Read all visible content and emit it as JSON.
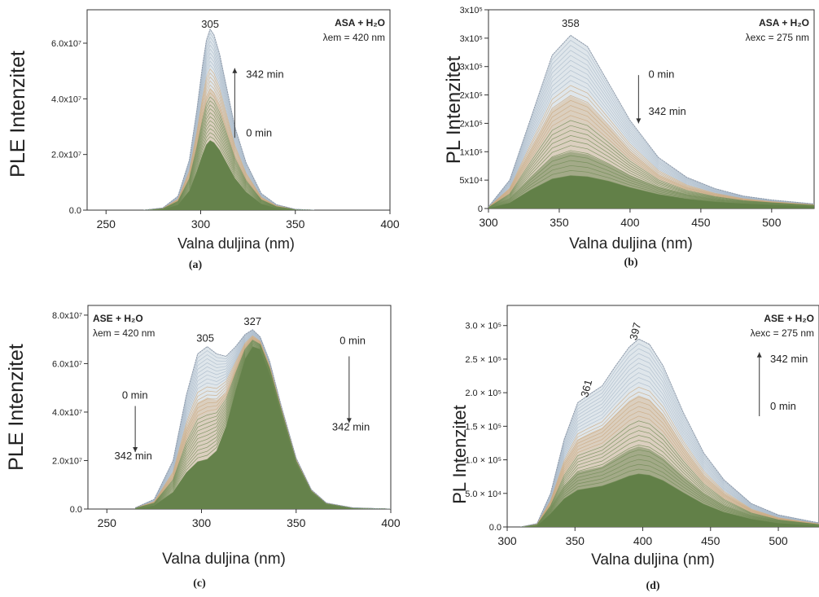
{
  "chart_data": [
    {
      "panel_label": "(a)",
      "type": "line",
      "ylabel": "PLE Intenzitet",
      "xlabel": "Valna duljina (nm)",
      "annotation_line1": "ASA + H₂O",
      "annotation_line2": "λem = 420 nm",
      "xlim": [
        240,
        400
      ],
      "ylim": [
        0,
        72000000.0
      ],
      "xticks": [
        250,
        300,
        350,
        400
      ],
      "ytick_values": [
        0,
        20000000.0,
        40000000.0,
        60000000.0
      ],
      "ytick_labels": [
        "0.0",
        "2.0x10⁷",
        "4.0x10⁷",
        "6.0x10⁷"
      ],
      "peak_labels": [
        {
          "text": "305",
          "x": 305,
          "y": 65500000.0
        }
      ],
      "time_labels": [
        {
          "text": "342 min",
          "x": 324,
          "y": 47500000.0
        },
        {
          "text": "0 min",
          "x": 324,
          "y": 26500000.0
        }
      ],
      "arrow": {
        "x": 318,
        "y_from": 26000000.0,
        "y_to": 51000000.0
      },
      "series": [
        {
          "values_x": [
            270,
            280,
            288,
            294,
            298,
            301,
            303,
            305,
            307,
            310,
            314,
            318,
            324,
            332,
            340,
            350,
            360
          ],
          "values_y": [
            0,
            800000.0,
            5000000.0,
            18000000.0,
            36000000.0,
            52000000.0,
            61000000.0,
            65000000.0,
            63000000.0,
            56000000.0,
            43000000.0,
            30000000.0,
            17000000.0,
            6000000.0,
            2000000.0,
            300000.0,
            0
          ]
        },
        {
          "values_x": [
            270,
            280,
            288,
            294,
            298,
            301,
            303,
            305,
            307,
            310,
            314,
            318,
            324,
            332,
            340,
            350,
            360
          ],
          "values_y": [
            0,
            500000.0,
            3500000.0,
            12000000.0,
            24000000.0,
            35000000.0,
            41000000.0,
            44000000.0,
            42500000.0,
            38000000.0,
            29000000.0,
            20000000.0,
            11500000.0,
            4000000.0,
            1400000.0,
            200000.0,
            0
          ]
        },
        {
          "values_x": [
            270,
            280,
            288,
            294,
            298,
            301,
            303,
            305,
            307,
            310,
            314,
            318,
            324,
            332,
            340,
            350,
            360
          ],
          "values_y": [
            0,
            300000.0,
            2000000.0,
            7000000.0,
            14000000.0,
            20000000.0,
            23500000.0,
            25000000.0,
            24200000.0,
            21500000.0,
            16500000.0,
            11500000.0,
            6500000.0,
            2300000.0,
            800000.0,
            100000.0,
            0
          ]
        }
      ]
    },
    {
      "panel_label": "(b)",
      "type": "line",
      "ylabel": "PL Intenzitet",
      "xlabel": "Valna duljina (nm)",
      "annotation_line1": "ASA + H₂O",
      "annotation_line2": "λexc = 275 nm",
      "xlim": [
        300,
        530
      ],
      "ylim": [
        0,
        350000.0
      ],
      "xticks": [
        300,
        350,
        400,
        450,
        500
      ],
      "ytick_values": [
        0,
        50000.0,
        100000.0,
        150000.0,
        200000.0,
        250000.0,
        300000.0,
        350000.0
      ],
      "ytick_labels": [
        "0",
        "5x10⁴",
        "1x10⁵",
        "2x10⁵",
        "2x10⁵",
        "3x10⁵",
        "3x10⁵",
        "3x10⁵"
      ],
      "peak_labels": [
        {
          "text": "358",
          "x": 358,
          "y": 320000.0
        }
      ],
      "time_labels": [
        {
          "text": "0 min",
          "x": 413,
          "y": 230000.0
        },
        {
          "text": "342 min",
          "x": 413,
          "y": 165000.0
        }
      ],
      "arrow": {
        "x": 406,
        "y_from": 235000.0,
        "y_to": 150000.0
      },
      "series": [
        {
          "values_x": [
            300,
            315,
            330,
            345,
            358,
            370,
            385,
            400,
            420,
            440,
            460,
            480,
            500,
            530
          ],
          "values_y": [
            3000.0,
            50000.0,
            160000.0,
            270000.0,
            305000.0,
            285000.0,
            220000.0,
            155000.0,
            90000.0,
            55000.0,
            35000.0,
            22000.0,
            15000.0,
            8000.0
          ]
        },
        {
          "values_x": [
            300,
            315,
            330,
            345,
            358,
            370,
            385,
            400,
            420,
            440,
            460,
            480,
            500,
            530
          ],
          "values_y": [
            2000.0,
            35000.0,
            105000.0,
            175000.0,
            198000.0,
            185000.0,
            145000.0,
            102000.0,
            60000.0,
            37000.0,
            24000.0,
            16000.0,
            11000.0,
            6000.0
          ]
        },
        {
          "values_x": [
            300,
            315,
            330,
            345,
            358,
            370,
            385,
            400,
            420,
            440,
            460,
            480,
            500,
            530
          ],
          "values_y": [
            1000.0,
            18000.0,
            55000.0,
            90000.0,
            100000.0,
            95000.0,
            78000.0,
            58000.0,
            38000.0,
            25000.0,
            17000.0,
            12000.0,
            9000.0,
            5000.0
          ]
        },
        {
          "values_x": [
            300,
            315,
            330,
            345,
            358,
            370,
            385,
            400,
            420,
            440,
            460,
            480,
            500,
            530
          ],
          "values_y": [
            1000.0,
            10000.0,
            33000.0,
            52000.0,
            58000.0,
            56000.0,
            48000.0,
            37000.0,
            25000.0,
            17000.0,
            12000.0,
            9000.0,
            7000.0,
            4000.0
          ]
        }
      ]
    },
    {
      "panel_label": "(c)",
      "type": "line",
      "ylabel": "PLE Intenzitet",
      "xlabel": "Valna duljina (nm)",
      "annotation_line1": "ASE + H₂O",
      "annotation_line2": "λem = 420 nm",
      "xlim": [
        240,
        400
      ],
      "ylim": [
        0,
        84000000.0
      ],
      "xticks": [
        250,
        300,
        350,
        400
      ],
      "ytick_values": [
        0,
        20000000.0,
        40000000.0,
        60000000.0,
        80000000.0
      ],
      "ytick_labels": [
        "0.0",
        "2.0x10⁷",
        "4.0x10⁷",
        "6.0x10⁷",
        "8.0x10⁷"
      ],
      "peak_labels": [
        {
          "text": "305",
          "x": 302,
          "y": 69000000.0
        },
        {
          "text": "327",
          "x": 327,
          "y": 76000000.0
        }
      ],
      "time_labels": [
        {
          "text": "0 min",
          "x": 258,
          "y": 45500000.0
        },
        {
          "text": "342 min",
          "x": 254,
          "y": 20500000.0
        },
        {
          "text": "0 min",
          "x": 373,
          "y": 68000000.0
        },
        {
          "text": "342 min",
          "x": 369,
          "y": 32500000.0
        }
      ],
      "arrows": [
        {
          "x": 265,
          "y_from": 42500000.0,
          "y_to": 23500000.0
        },
        {
          "x": 378,
          "y_from": 63000000.0,
          "y_to": 35500000.0
        }
      ],
      "series": [
        {
          "values_x": [
            265,
            275,
            285,
            292,
            298,
            303,
            308,
            313,
            318,
            323,
            327,
            331,
            336,
            342,
            350,
            358,
            366,
            380,
            400
          ],
          "values_y": [
            500000.0,
            4000000.0,
            20000000.0,
            47000000.0,
            64000000.0,
            67000000.0,
            64000000.0,
            63000000.0,
            67000000.0,
            72000000.0,
            74000000.0,
            71000000.0,
            61000000.0,
            43000000.0,
            21000000.0,
            8000000.0,
            2500000.0,
            500000.0,
            0
          ]
        },
        {
          "values_x": [
            265,
            275,
            285,
            292,
            298,
            303,
            308,
            313,
            318,
            323,
            327,
            331,
            336,
            342,
            350,
            358,
            366,
            380,
            400
          ],
          "values_y": [
            300000.0,
            3000000.0,
            14000000.0,
            33000000.0,
            44000000.0,
            46000000.0,
            45000000.0,
            48000000.0,
            58000000.0,
            67000000.0,
            71000000.0,
            69000000.0,
            59000000.0,
            42000000.0,
            20000000.0,
            7500000.0,
            2200000.0,
            400000.0,
            0
          ]
        },
        {
          "values_x": [
            265,
            275,
            285,
            292,
            298,
            303,
            308,
            313,
            318,
            323,
            327,
            331,
            336,
            342,
            350,
            358,
            366,
            380,
            400
          ],
          "values_y": [
            200000.0,
            1500000.0,
            7000000.0,
            15000000.0,
            19500000.0,
            20500000.0,
            24000000.0,
            34000000.0,
            49000000.0,
            62000000.0,
            67000000.0,
            66000000.0,
            56000000.0,
            40000000.0,
            19000000.0,
            7000000.0,
            2000000.0,
            300000.0,
            0
          ]
        }
      ]
    },
    {
      "panel_label": "(d)",
      "type": "line",
      "ylabel": "PL Intenzitet",
      "xlabel": "Valna duljina (nm)",
      "annotation_line1": "ASE + H₂O",
      "annotation_line2": "λexc = 275 nm",
      "xlim": [
        300,
        530
      ],
      "ylim": [
        0,
        330000.0
      ],
      "xticks": [
        300,
        350,
        400,
        450,
        500
      ],
      "ytick_values": [
        0,
        50000.0,
        100000.0,
        150000.0,
        200000.0,
        250000.0,
        300000.0
      ],
      "ytick_labels": [
        "0.0",
        "5.0 × 10⁴",
        "1.0 × 10⁵",
        "1.5 × 10⁵",
        "2.0 × 10⁵",
        "2.5 × 10⁵",
        "3.0 × 10⁵"
      ],
      "peak_labels": [
        {
          "text": "361",
          "x": 361,
          "y": 205000.0
        },
        {
          "text": "397",
          "x": 397,
          "y": 290000.0
        }
      ],
      "time_labels": [
        {
          "text": "342 min",
          "x": 494,
          "y": 245000.0
        },
        {
          "text": "0 min",
          "x": 494,
          "y": 175000.0
        }
      ],
      "arrow": {
        "x": 486,
        "y_from": 165000.0,
        "y_to": 260000.0
      },
      "series": [
        {
          "values_x": [
            310,
            322,
            332,
            342,
            352,
            361,
            370,
            380,
            390,
            397,
            405,
            415,
            430,
            445,
            460,
            480,
            500,
            530
          ],
          "values_y": [
            0,
            5000.0,
            50000.0,
            130000.0,
            185000.0,
            198000.0,
            210000.0,
            240000.0,
            268000.0,
            280000.0,
            272000.0,
            240000.0,
            170000.0,
            110000.0,
            70000.0,
            35000.0,
            18000.0,
            6000.0
          ]
        },
        {
          "values_x": [
            310,
            322,
            332,
            342,
            352,
            361,
            370,
            380,
            390,
            397,
            405,
            415,
            430,
            445,
            460,
            480,
            500,
            530
          ],
          "values_y": [
            0,
            4000.0,
            40000.0,
            95000.0,
            130000.0,
            140000.0,
            148000.0,
            168000.0,
            188000.0,
            196000.0,
            190000.0,
            168000.0,
            120000.0,
            78000.0,
            50000.0,
            26000.0,
            13000.0,
            5000.0
          ]
        },
        {
          "values_x": [
            310,
            322,
            332,
            342,
            352,
            361,
            370,
            380,
            390,
            397,
            405,
            415,
            430,
            445,
            460,
            480,
            500,
            530
          ],
          "values_y": [
            0,
            3000.0,
            28000.0,
            62000.0,
            82000.0,
            86000.0,
            90000.0,
            103000.0,
            115000.0,
            120000.0,
            116000.0,
            103000.0,
            75000.0,
            50000.0,
            32000.0,
            17000.0,
            9000.0,
            3000.0
          ]
        },
        {
          "values_x": [
            310,
            322,
            332,
            342,
            352,
            361,
            370,
            380,
            390,
            397,
            405,
            415,
            430,
            445,
            460,
            480,
            500,
            530
          ],
          "values_y": [
            0,
            2000.0,
            20000.0,
            42000.0,
            55000.0,
            58000.0,
            61000.0,
            68000.0,
            76000.0,
            79000.0,
            77000.0,
            69000.0,
            51000.0,
            34000.0,
            22000.0,
            12000.0,
            6000.0,
            2000.0
          ]
        }
      ]
    }
  ],
  "colors": {
    "fill_green": "#5f7d45",
    "band_light": "#b9c7d3",
    "band_mid": "#d7b48a",
    "axis": "#333333"
  }
}
